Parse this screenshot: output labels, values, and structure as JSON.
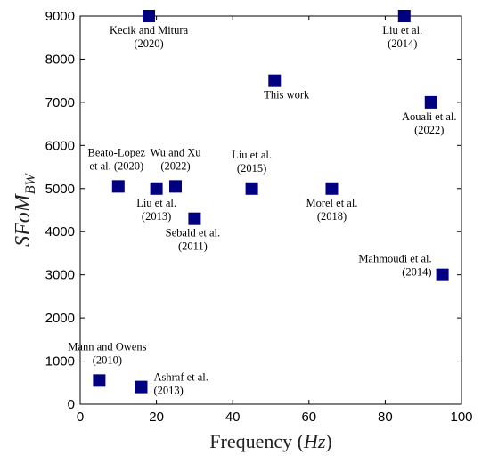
{
  "chart_data": {
    "type": "scatter",
    "title": "",
    "xlabel_text": "Frequency",
    "xlabel_unit": "Hz",
    "ylabel_main": "SFoM",
    "ylabel_sub": "BW",
    "xlim": [
      0,
      100
    ],
    "ylim": [
      0,
      9000
    ],
    "xticks": [
      0,
      20,
      40,
      60,
      80,
      100
    ],
    "yticks": [
      0,
      1000,
      2000,
      3000,
      4000,
      5000,
      6000,
      7000,
      8000,
      9000
    ],
    "grid": false,
    "marker_color": "#000080",
    "points": [
      {
        "label": [
          "Kecik and Mitura",
          "(2020)"
        ],
        "x": 18,
        "y": 9000
      },
      {
        "label": [
          "Liu et al.",
          "(2014)"
        ],
        "x": 85,
        "y": 9000
      },
      {
        "label": [
          "This work"
        ],
        "x": 51,
        "y": 7500
      },
      {
        "label": [
          "Aouali et al.",
          "(2022)"
        ],
        "x": 92,
        "y": 7000
      },
      {
        "label": [
          "Beato-Lopez",
          "et al. (2020)"
        ],
        "x": 10,
        "y": 5050
      },
      {
        "label": [
          "Liu et al.",
          "(2013)"
        ],
        "x": 20,
        "y": 5000
      },
      {
        "label": [
          "Wu and Xu",
          "(2022)"
        ],
        "x": 25,
        "y": 5050
      },
      {
        "label": [
          "Liu et al.",
          "(2015)"
        ],
        "x": 45,
        "y": 5000
      },
      {
        "label": [
          "Morel et al.",
          "(2018)"
        ],
        "x": 66,
        "y": 5000
      },
      {
        "label": [
          "Sebald et al.",
          "(2011)"
        ],
        "x": 30,
        "y": 4300
      },
      {
        "label": [
          "Mahmoudi et al.",
          "(2014)"
        ],
        "x": 95,
        "y": 3000
      },
      {
        "label": [
          "Mann and Owens",
          "(2010)"
        ],
        "x": 5,
        "y": 550
      },
      {
        "label": [
          "Ashraf et al.",
          "(2013)"
        ],
        "x": 16,
        "y": 400
      }
    ]
  }
}
